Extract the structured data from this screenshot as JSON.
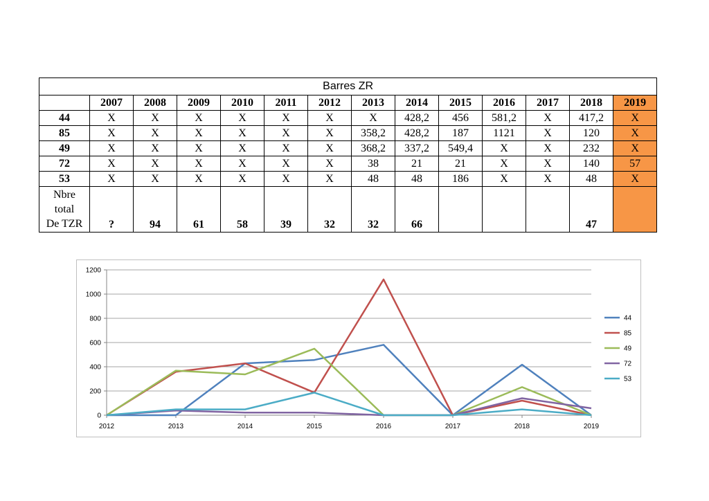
{
  "table": {
    "title": "Barres ZR",
    "years": [
      "2007",
      "2008",
      "2009",
      "2010",
      "2011",
      "2012",
      "2013",
      "2014",
      "2015",
      "2016",
      "2017",
      "2018",
      "2019"
    ],
    "highlight_year": "2019",
    "highlight_color": "#f79646",
    "rows": [
      {
        "label": "44",
        "cells": [
          "X",
          "X",
          "X",
          "X",
          "X",
          "X",
          "X",
          "428,2",
          "456",
          "581,2",
          "X",
          "417,2",
          "X"
        ]
      },
      {
        "label": "85",
        "cells": [
          "X",
          "X",
          "X",
          "X",
          "X",
          "X",
          "358,2",
          "428,2",
          "187",
          "1121",
          "X",
          "120",
          "X"
        ]
      },
      {
        "label": "49",
        "cells": [
          "X",
          "X",
          "X",
          "X",
          "X",
          "X",
          "368,2",
          "337,2",
          "549,4",
          "X",
          "X",
          "232",
          "X"
        ]
      },
      {
        "label": "72",
        "cells": [
          "X",
          "X",
          "X",
          "X",
          "X",
          "X",
          "38",
          "21",
          "21",
          "X",
          "X",
          "140",
          "57"
        ]
      },
      {
        "label": "53",
        "cells": [
          "X",
          "X",
          "X",
          "X",
          "X",
          "X",
          "48",
          "48",
          "186",
          "X",
          "X",
          "48",
          "X"
        ]
      }
    ],
    "total_row": {
      "label_lines": [
        "Nbre",
        "total",
        "De TZR"
      ],
      "cells": [
        "?",
        "94",
        "61",
        "58",
        "39",
        "32",
        "32",
        "66",
        "",
        "",
        "",
        "47",
        ""
      ]
    }
  },
  "chart_data": {
    "type": "line",
    "categories": [
      "2012",
      "2013",
      "2014",
      "2015",
      "2016",
      "2017",
      "2018",
      "2019"
    ],
    "ylim": [
      0,
      1200
    ],
    "yticks": [
      0,
      200,
      400,
      600,
      800,
      1000,
      1200
    ],
    "grid": true,
    "legend_position": "right",
    "series": [
      {
        "name": "44",
        "color": "#4f81bd",
        "values": [
          0,
          0,
          428.2,
          456,
          581.2,
          0,
          417.2,
          0
        ]
      },
      {
        "name": "85",
        "color": "#c0504d",
        "values": [
          0,
          358.2,
          428.2,
          187,
          1121,
          0,
          120,
          0
        ]
      },
      {
        "name": "49",
        "color": "#9bbb59",
        "values": [
          0,
          368.2,
          337.2,
          549.4,
          0,
          0,
          232,
          0
        ]
      },
      {
        "name": "72",
        "color": "#8064a2",
        "values": [
          0,
          38,
          21,
          21,
          0,
          0,
          140,
          57
        ]
      },
      {
        "name": "53",
        "color": "#4bacc6",
        "values": [
          0,
          48,
          48,
          186,
          0,
          0,
          48,
          0
        ]
      }
    ]
  }
}
